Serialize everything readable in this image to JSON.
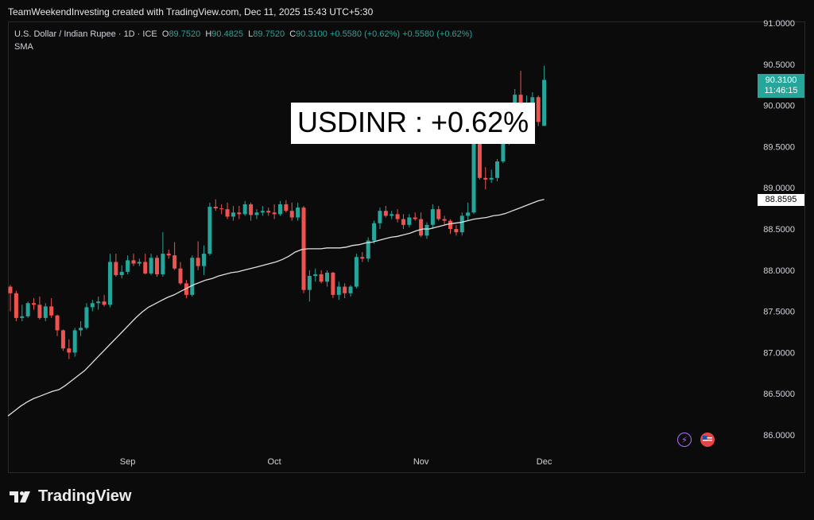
{
  "header": {
    "credit": "TeamWeekendInvesting created with TradingView.com, Dec 11, 2025 15:43 UTC+5:30"
  },
  "legend": {
    "symbol": "U.S. Dollar / Indian Rupee · 1D · ICE",
    "open_label": "O",
    "open": "89.7520",
    "high_label": "H",
    "high": "90.4825",
    "low_label": "L",
    "low": "89.7520",
    "close_label": "C",
    "close": "90.3100",
    "change": "+0.5580 (+0.62%)",
    "change2": "+0.5580 (+0.62%)",
    "indicator": "SMA"
  },
  "annotation": "USDINR : +0.62%",
  "price_tag": {
    "price": "90.3100",
    "countdown": "11:46:15"
  },
  "sma_tag": "88.8595",
  "brand": {
    "name": "TradingView"
  },
  "icons": {
    "bolt": "lightning-icon",
    "flag": "us-flag-icon"
  },
  "colors": {
    "up": "#26a69a",
    "down": "#ef5350",
    "sma": "#e0e0e0",
    "background": "#0b0b0b"
  },
  "chart_data": {
    "type": "candlestick",
    "title": "U.S. Dollar / Indian Rupee · 1D · ICE",
    "y_ticks": [
      "91.0000",
      "90.5000",
      "90.0000",
      "89.5000",
      "89.0000",
      "88.5000",
      "88.0000",
      "87.5000",
      "87.0000",
      "86.5000",
      "86.0000"
    ],
    "ylim": [
      85.9,
      91.05
    ],
    "x_ticks": [
      {
        "label": "Sep",
        "index": 20
      },
      {
        "label": "Oct",
        "index": 45
      },
      {
        "label": "Nov",
        "index": 70
      },
      {
        "label": "Dec",
        "index": 91
      }
    ],
    "candles": [
      {
        "o": 87.8,
        "h": 87.82,
        "l": 87.5,
        "c": 87.72
      },
      {
        "o": 87.72,
        "h": 87.75,
        "l": 87.38,
        "c": 87.42
      },
      {
        "o": 87.42,
        "h": 87.58,
        "l": 87.38,
        "c": 87.44
      },
      {
        "o": 87.44,
        "h": 87.62,
        "l": 87.42,
        "c": 87.6
      },
      {
        "o": 87.6,
        "h": 87.66,
        "l": 87.52,
        "c": 87.58
      },
      {
        "o": 87.58,
        "h": 87.68,
        "l": 87.4,
        "c": 87.42
      },
      {
        "o": 87.42,
        "h": 87.6,
        "l": 87.38,
        "c": 87.56
      },
      {
        "o": 87.56,
        "h": 87.66,
        "l": 87.42,
        "c": 87.45
      },
      {
        "o": 87.45,
        "h": 87.46,
        "l": 87.2,
        "c": 87.27
      },
      {
        "o": 87.27,
        "h": 87.28,
        "l": 87.02,
        "c": 87.05
      },
      {
        "o": 87.05,
        "h": 87.16,
        "l": 86.92,
        "c": 87.0
      },
      {
        "o": 87.0,
        "h": 87.3,
        "l": 86.95,
        "c": 87.27
      },
      {
        "o": 87.27,
        "h": 87.38,
        "l": 87.2,
        "c": 87.3
      },
      {
        "o": 87.3,
        "h": 87.6,
        "l": 87.28,
        "c": 87.55
      },
      {
        "o": 87.55,
        "h": 87.64,
        "l": 87.5,
        "c": 87.6
      },
      {
        "o": 87.6,
        "h": 87.68,
        "l": 87.52,
        "c": 87.62
      },
      {
        "o": 87.62,
        "h": 87.7,
        "l": 87.56,
        "c": 87.58
      },
      {
        "o": 87.58,
        "h": 88.2,
        "l": 87.55,
        "c": 88.1
      },
      {
        "o": 88.1,
        "h": 88.2,
        "l": 87.92,
        "c": 87.94
      },
      {
        "o": 87.94,
        "h": 88.06,
        "l": 87.9,
        "c": 87.98
      },
      {
        "o": 87.98,
        "h": 88.18,
        "l": 87.95,
        "c": 88.12
      },
      {
        "o": 88.12,
        "h": 88.2,
        "l": 88.05,
        "c": 88.08
      },
      {
        "o": 88.08,
        "h": 88.14,
        "l": 88.05,
        "c": 88.1
      },
      {
        "o": 88.1,
        "h": 88.2,
        "l": 87.95,
        "c": 87.96
      },
      {
        "o": 87.96,
        "h": 88.2,
        "l": 87.94,
        "c": 88.15
      },
      {
        "o": 88.15,
        "h": 88.18,
        "l": 87.92,
        "c": 87.95
      },
      {
        "o": 87.95,
        "h": 88.46,
        "l": 87.92,
        "c": 88.2
      },
      {
        "o": 88.2,
        "h": 88.25,
        "l": 88.14,
        "c": 88.18
      },
      {
        "o": 88.18,
        "h": 88.34,
        "l": 88.0,
        "c": 88.02
      },
      {
        "o": 88.02,
        "h": 88.1,
        "l": 87.82,
        "c": 87.84
      },
      {
        "o": 87.84,
        "h": 87.88,
        "l": 87.66,
        "c": 87.7
      },
      {
        "o": 87.7,
        "h": 88.18,
        "l": 87.68,
        "c": 88.15
      },
      {
        "o": 88.15,
        "h": 88.35,
        "l": 88.0,
        "c": 88.05
      },
      {
        "o": 88.05,
        "h": 88.3,
        "l": 87.94,
        "c": 88.2
      },
      {
        "o": 88.2,
        "h": 88.82,
        "l": 88.18,
        "c": 88.77
      },
      {
        "o": 88.77,
        "h": 88.86,
        "l": 88.72,
        "c": 88.75
      },
      {
        "o": 88.75,
        "h": 88.8,
        "l": 88.68,
        "c": 88.74
      },
      {
        "o": 88.74,
        "h": 88.82,
        "l": 88.62,
        "c": 88.65
      },
      {
        "o": 88.65,
        "h": 88.78,
        "l": 88.6,
        "c": 88.7
      },
      {
        "o": 88.7,
        "h": 88.78,
        "l": 88.62,
        "c": 88.68
      },
      {
        "o": 88.68,
        "h": 88.84,
        "l": 88.66,
        "c": 88.8
      },
      {
        "o": 88.8,
        "h": 88.82,
        "l": 88.6,
        "c": 88.67
      },
      {
        "o": 88.67,
        "h": 88.74,
        "l": 88.62,
        "c": 88.7
      },
      {
        "o": 88.7,
        "h": 88.78,
        "l": 88.66,
        "c": 88.72
      },
      {
        "o": 88.72,
        "h": 88.76,
        "l": 88.66,
        "c": 88.7
      },
      {
        "o": 88.7,
        "h": 88.8,
        "l": 88.62,
        "c": 88.68
      },
      {
        "o": 88.68,
        "h": 88.84,
        "l": 88.66,
        "c": 88.8
      },
      {
        "o": 88.8,
        "h": 88.85,
        "l": 88.7,
        "c": 88.72
      },
      {
        "o": 88.72,
        "h": 88.82,
        "l": 88.6,
        "c": 88.64
      },
      {
        "o": 88.64,
        "h": 88.82,
        "l": 88.6,
        "c": 88.76
      },
      {
        "o": 88.76,
        "h": 88.78,
        "l": 87.72,
        "c": 87.76
      },
      {
        "o": 87.76,
        "h": 88.0,
        "l": 87.62,
        "c": 87.93
      },
      {
        "o": 87.93,
        "h": 88.02,
        "l": 87.86,
        "c": 87.95
      },
      {
        "o": 87.95,
        "h": 88.0,
        "l": 87.84,
        "c": 87.86
      },
      {
        "o": 87.86,
        "h": 88.0,
        "l": 87.8,
        "c": 87.97
      },
      {
        "o": 87.97,
        "h": 87.98,
        "l": 87.66,
        "c": 87.7
      },
      {
        "o": 87.7,
        "h": 87.86,
        "l": 87.64,
        "c": 87.8
      },
      {
        "o": 87.8,
        "h": 87.84,
        "l": 87.66,
        "c": 87.72
      },
      {
        "o": 87.72,
        "h": 87.82,
        "l": 87.68,
        "c": 87.8
      },
      {
        "o": 87.8,
        "h": 88.2,
        "l": 87.78,
        "c": 88.16
      },
      {
        "o": 88.16,
        "h": 88.22,
        "l": 88.1,
        "c": 88.14
      },
      {
        "o": 88.14,
        "h": 88.4,
        "l": 88.1,
        "c": 88.36
      },
      {
        "o": 88.36,
        "h": 88.6,
        "l": 88.32,
        "c": 88.57
      },
      {
        "o": 88.57,
        "h": 88.76,
        "l": 88.5,
        "c": 88.72
      },
      {
        "o": 88.72,
        "h": 88.78,
        "l": 88.64,
        "c": 88.66
      },
      {
        "o": 88.66,
        "h": 88.72,
        "l": 88.62,
        "c": 88.68
      },
      {
        "o": 88.68,
        "h": 88.74,
        "l": 88.58,
        "c": 88.62
      },
      {
        "o": 88.62,
        "h": 88.68,
        "l": 88.5,
        "c": 88.55
      },
      {
        "o": 88.55,
        "h": 88.68,
        "l": 88.52,
        "c": 88.64
      },
      {
        "o": 88.64,
        "h": 88.7,
        "l": 88.6,
        "c": 88.62
      },
      {
        "o": 88.62,
        "h": 88.7,
        "l": 88.4,
        "c": 88.42
      },
      {
        "o": 88.42,
        "h": 88.58,
        "l": 88.38,
        "c": 88.55
      },
      {
        "o": 88.55,
        "h": 88.8,
        "l": 88.5,
        "c": 88.74
      },
      {
        "o": 88.74,
        "h": 88.78,
        "l": 88.6,
        "c": 88.62
      },
      {
        "o": 88.62,
        "h": 88.66,
        "l": 88.55,
        "c": 88.6
      },
      {
        "o": 88.6,
        "h": 88.62,
        "l": 88.44,
        "c": 88.5
      },
      {
        "o": 88.5,
        "h": 88.55,
        "l": 88.42,
        "c": 88.46
      },
      {
        "o": 88.46,
        "h": 88.7,
        "l": 88.42,
        "c": 88.66
      },
      {
        "o": 88.66,
        "h": 88.82,
        "l": 88.6,
        "c": 88.7
      },
      {
        "o": 88.7,
        "h": 89.7,
        "l": 88.68,
        "c": 89.6
      },
      {
        "o": 89.6,
        "h": 89.62,
        "l": 89.1,
        "c": 89.12
      },
      {
        "o": 89.12,
        "h": 89.25,
        "l": 88.98,
        "c": 89.1
      },
      {
        "o": 89.1,
        "h": 89.22,
        "l": 89.06,
        "c": 89.12
      },
      {
        "o": 89.12,
        "h": 89.35,
        "l": 89.08,
        "c": 89.32
      },
      {
        "o": 89.32,
        "h": 89.6,
        "l": 89.3,
        "c": 89.55
      },
      {
        "o": 89.55,
        "h": 89.95,
        "l": 89.52,
        "c": 89.88
      },
      {
        "o": 89.88,
        "h": 90.2,
        "l": 89.8,
        "c": 90.13
      },
      {
        "o": 90.13,
        "h": 90.42,
        "l": 89.78,
        "c": 89.82
      },
      {
        "o": 89.82,
        "h": 90.12,
        "l": 89.75,
        "c": 89.93
      },
      {
        "o": 89.93,
        "h": 90.16,
        "l": 89.88,
        "c": 90.1
      },
      {
        "o": 90.1,
        "h": 90.12,
        "l": 89.75,
        "c": 89.8
      },
      {
        "o": 89.752,
        "h": 90.4825,
        "l": 89.752,
        "c": 90.31
      }
    ],
    "sma": [
      86.23,
      86.29,
      86.35,
      86.4,
      86.44,
      86.47,
      86.5,
      86.53,
      86.55,
      86.6,
      86.66,
      86.72,
      86.78,
      86.86,
      86.94,
      87.02,
      87.1,
      87.18,
      87.26,
      87.34,
      87.42,
      87.49,
      87.55,
      87.59,
      87.63,
      87.67,
      87.7,
      87.74,
      87.78,
      87.82,
      87.85,
      87.88,
      87.9,
      87.93,
      87.95,
      87.97,
      87.98,
      88.0,
      88.02,
      88.04,
      88.06,
      88.08,
      88.1,
      88.13,
      88.17,
      88.22,
      88.25,
      88.26,
      88.26,
      88.26,
      88.27,
      88.27,
      88.27,
      88.28,
      88.3,
      88.31,
      88.33,
      88.34,
      88.36,
      88.38,
      88.4,
      88.41,
      88.43,
      88.45,
      88.48,
      88.5,
      88.5,
      88.52,
      88.54,
      88.56,
      88.57,
      88.58,
      88.6,
      88.62,
      88.63,
      88.64,
      88.66,
      88.67,
      88.69,
      88.72,
      88.75,
      88.78,
      88.81,
      88.84,
      88.8595
    ]
  }
}
